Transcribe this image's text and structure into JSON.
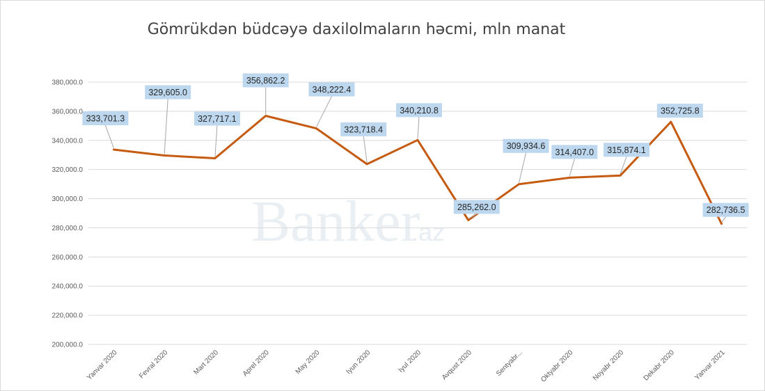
{
  "colors": {
    "line": "#c55a11",
    "label_bg": "#bdd7ee",
    "grid": "#d9d9d9"
  },
  "watermark": {
    "main": "Banker",
    "sub": ".az"
  },
  "chart_data": {
    "type": "line",
    "title": "Gömrükdən büdcəyə daxilolmaların həcmi, mln manat",
    "xlabel": "",
    "ylabel": "",
    "ylim": [
      200000,
      380000
    ],
    "yticks": [
      200000,
      220000,
      240000,
      260000,
      280000,
      300000,
      320000,
      340000,
      360000,
      380000
    ],
    "ytick_labels": [
      "200,000.0",
      "220,000.0",
      "240,000.0",
      "260,000.0",
      "280,000.0",
      "300,000.0",
      "320,000.0",
      "340,000.0",
      "360,000.0",
      "380,000.0"
    ],
    "grid": true,
    "legend": "none",
    "categories": [
      "Yanvar 2020",
      "Fevral 2020",
      "Mart 2020",
      "Aprel 2020",
      "May 2020",
      "Iyun 2020",
      "Iyul 2020",
      "Avqust 2020",
      "Sentyabr...",
      "Oktyabr 2020",
      "Noyabr 2020",
      "Dekabr 2020",
      "Yanvar 2021"
    ],
    "series": [
      {
        "values": [
          333701.3,
          329605.0,
          327717.1,
          356862.2,
          348222.4,
          323718.4,
          340210.8,
          285262.0,
          309934.6,
          314407.0,
          315874.1,
          352725.8,
          282736.5
        ],
        "data_labels": [
          "333,701.3",
          "329,605.0",
          "327,717.1",
          "356,862.2",
          "348,222.4",
          "323,718.4",
          "340,210.8",
          "285,262.0",
          "309,934.6",
          "314,407.0",
          "315,874.1",
          "352,725.8",
          "282,736.5"
        ]
      }
    ]
  }
}
